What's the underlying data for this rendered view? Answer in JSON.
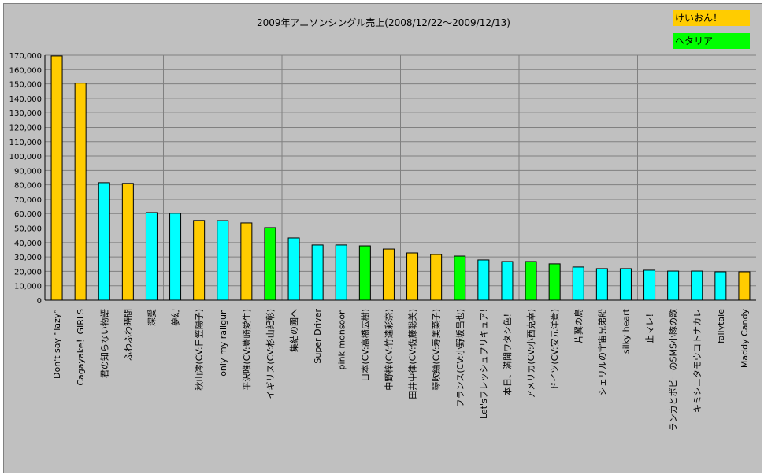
{
  "chart_data": {
    "type": "bar",
    "title": "2009年アニソンシングル売上(2008/12/22～2009/12/13)",
    "xlabel": "",
    "ylabel": "",
    "ylim": [
      0,
      170000
    ],
    "ytick_step": 10000,
    "yticks": [
      "0",
      "10,000",
      "20,000",
      "30,000",
      "40,000",
      "50,000",
      "60,000",
      "70,000",
      "80,000",
      "90,000",
      "100,000",
      "110,000",
      "120,000",
      "130,000",
      "140,000",
      "150,000",
      "160,000",
      "170,000"
    ],
    "grid": true,
    "legend_placement": "top-right",
    "legend": [
      {
        "label": "けいおん！",
        "color": "#FFCC00"
      },
      {
        "label": "ヘタリア",
        "color": "#00FF00"
      }
    ],
    "other_color": "#00FFFF",
    "categories": [
      "Don't say “lazy”",
      "Cagayake！GIRLS",
      "君の知らない物語",
      "ふわふわ時間",
      "深愛",
      "夢幻",
      "秋山澪(CV:日笠陽子)",
      "only my railgun",
      "平沢唯(CV:豊崎愛生)",
      "イギリス(CV:杉山紀彰)",
      "集結の園へ",
      "Super Driver",
      "pink monsoon",
      "日本(CV:高橋広樹)",
      "中野梓(CV:竹達彩奈)",
      "田井中律(CV:佐藤聡美)",
      "琴吹紬(CV:寿美菜子)",
      "フランス(CV:小野坂昌也)",
      "Let'sフレッシュプリキュア!",
      "本日、満開ワタシ色！",
      "アメリカ(CV:小西克幸)",
      "ドイツ(CV:安元洋貴)",
      "片翼の鳥",
      "シェリルの宇宙兄弟船",
      "silky heart",
      "止マレ！",
      "ランカとボビーのSMS小隊の歌",
      "キミシニタモウコトナカレ",
      "fallytale",
      "Maddy Candy"
    ],
    "values": [
      169500,
      150500,
      81500,
      81000,
      60700,
      60200,
      55300,
      55200,
      53600,
      50300,
      43200,
      38300,
      38300,
      37700,
      35500,
      32800,
      31700,
      30600,
      27900,
      26800,
      26800,
      25200,
      23000,
      21900,
      21900,
      20800,
      20200,
      20200,
      19700,
      19700
    ],
    "colors": [
      "#FFCC00",
      "#FFCC00",
      "#00FFFF",
      "#FFCC00",
      "#00FFFF",
      "#00FFFF",
      "#FFCC00",
      "#00FFFF",
      "#FFCC00",
      "#00FF00",
      "#00FFFF",
      "#00FFFF",
      "#00FFFF",
      "#00FF00",
      "#FFCC00",
      "#FFCC00",
      "#FFCC00",
      "#00FF00",
      "#00FFFF",
      "#00FFFF",
      "#00FF00",
      "#00FF00",
      "#00FFFF",
      "#00FFFF",
      "#00FFFF",
      "#00FFFF",
      "#00FFFF",
      "#00FFFF",
      "#00FFFF",
      "#FFCC00"
    ]
  }
}
